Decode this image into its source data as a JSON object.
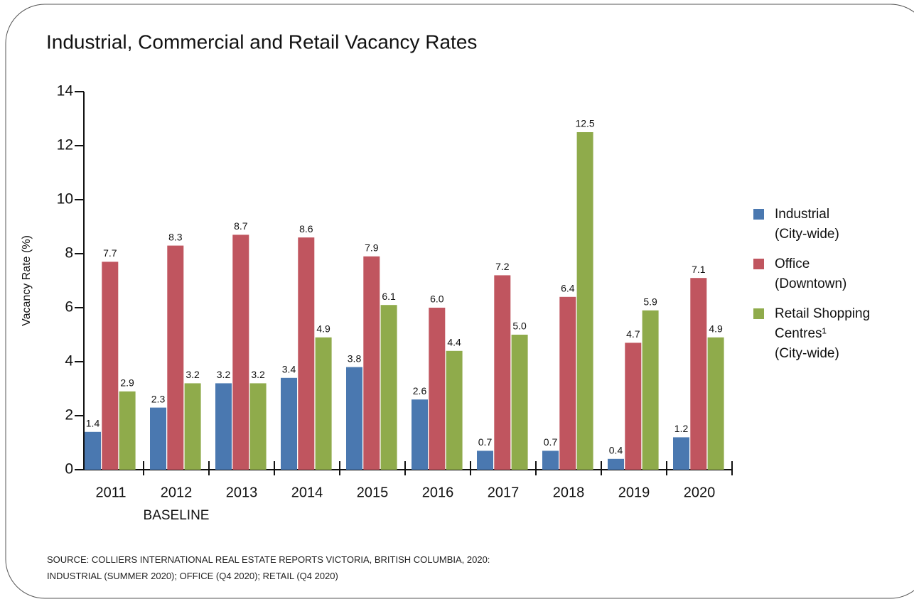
{
  "chart_data": {
    "type": "bar",
    "title": "Industrial, Commercial and Retail Vacancy Rates",
    "ylabel": "Vacancy Rate (%)",
    "categories": [
      "2011",
      "2012",
      "2013",
      "2014",
      "2015",
      "2016",
      "2017",
      "2018",
      "2019",
      "2020"
    ],
    "annotations": [
      {
        "category": 1,
        "text": "BASELINE"
      }
    ],
    "series": [
      {
        "name": "Industrial\n(City-wide)",
        "color": "#4a78b0",
        "values": [
          1.4,
          2.3,
          3.2,
          3.4,
          3.8,
          2.6,
          0.7,
          0.7,
          0.4,
          1.2
        ],
        "value_labels": [
          "1.4",
          "2.3",
          "3.2",
          "3.4",
          "3.8",
          "2.6",
          "0.7",
          "0.7",
          "0.4",
          "1.2"
        ]
      },
      {
        "name": "Office\n(Downtown)",
        "color": "#c0555f",
        "values": [
          7.7,
          8.3,
          8.7,
          8.6,
          7.9,
          6.0,
          7.2,
          6.4,
          4.7,
          7.1
        ],
        "value_labels": [
          "7.7",
          "8.3",
          "8.7",
          "8.6",
          "7.9",
          "6.0",
          "7.2",
          "6.4",
          "4.7",
          "7.1"
        ]
      },
      {
        "name": "Retail Shopping\nCentres¹\n(City-wide)",
        "color": "#8fab4b",
        "values": [
          2.9,
          3.2,
          3.2,
          4.9,
          6.1,
          4.4,
          5.0,
          12.5,
          5.9,
          4.9
        ],
        "value_labels": [
          "2.9",
          "3.2",
          "3.2",
          "4.9",
          "6.1",
          "4.4",
          "5.0",
          "12.5",
          "5.9",
          "4.9"
        ]
      }
    ],
    "ylim": [
      0,
      14
    ],
    "yticks": [
      0,
      2,
      4,
      6,
      8,
      10,
      12,
      14
    ],
    "legend": "right",
    "source": [
      "SOURCE: COLLIERS INTERNATIONAL REAL ESTATE REPORTS VICTORIA, BRITISH COLUMBIA, 2020:",
      "INDUSTRIAL (SUMMER 2020); OFFICE (Q4 2020); RETAIL (Q4 2020)"
    ]
  }
}
